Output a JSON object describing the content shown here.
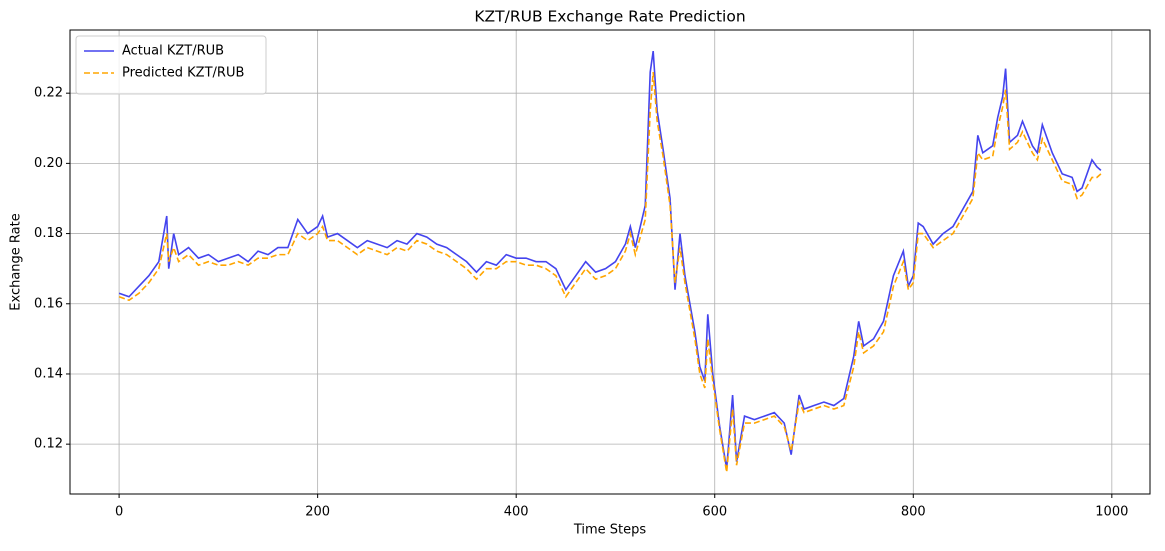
{
  "chart_data": {
    "type": "line",
    "title": "KZT/RUB Exchange Rate Prediction",
    "xlabel": "Time Steps",
    "ylabel": "Exchange Rate",
    "x": [
      0,
      10,
      20,
      30,
      40,
      48,
      50,
      55,
      60,
      70,
      80,
      90,
      100,
      110,
      120,
      130,
      140,
      150,
      160,
      170,
      180,
      190,
      200,
      205,
      210,
      220,
      230,
      240,
      250,
      260,
      270,
      280,
      290,
      300,
      310,
      320,
      330,
      340,
      350,
      360,
      370,
      380,
      390,
      400,
      410,
      420,
      430,
      440,
      450,
      460,
      470,
      480,
      490,
      500,
      510,
      515,
      520,
      530,
      535,
      538,
      542,
      548,
      555,
      560,
      565,
      570,
      580,
      585,
      590,
      593,
      598,
      605,
      612,
      618,
      622,
      630,
      640,
      650,
      660,
      670,
      677,
      685,
      690,
      700,
      710,
      720,
      730,
      740,
      745,
      750,
      760,
      770,
      780,
      790,
      795,
      800,
      805,
      810,
      820,
      830,
      840,
      850,
      860,
      865,
      870,
      880,
      885,
      890,
      893,
      897,
      905,
      910,
      920,
      925,
      930,
      940,
      950,
      960,
      965,
      970,
      980,
      985,
      989
    ],
    "series": [
      {
        "name": "Actual KZT/RUB",
        "color": "#4444ee",
        "dash": false,
        "values": [
          0.163,
          0.162,
          0.165,
          0.168,
          0.172,
          0.185,
          0.17,
          0.18,
          0.174,
          0.176,
          0.173,
          0.174,
          0.172,
          0.173,
          0.174,
          0.172,
          0.175,
          0.174,
          0.176,
          0.176,
          0.184,
          0.18,
          0.182,
          0.185,
          0.179,
          0.18,
          0.178,
          0.176,
          0.178,
          0.177,
          0.176,
          0.178,
          0.177,
          0.18,
          0.179,
          0.177,
          0.176,
          0.174,
          0.172,
          0.169,
          0.172,
          0.171,
          0.174,
          0.173,
          0.173,
          0.172,
          0.172,
          0.17,
          0.164,
          0.168,
          0.172,
          0.169,
          0.17,
          0.172,
          0.177,
          0.182,
          0.176,
          0.188,
          0.226,
          0.232,
          0.215,
          0.204,
          0.19,
          0.164,
          0.18,
          0.168,
          0.152,
          0.142,
          0.138,
          0.157,
          0.14,
          0.125,
          0.113,
          0.134,
          0.115,
          0.128,
          0.127,
          0.128,
          0.129,
          0.126,
          0.117,
          0.134,
          0.13,
          0.131,
          0.132,
          0.131,
          0.133,
          0.145,
          0.155,
          0.148,
          0.15,
          0.155,
          0.168,
          0.175,
          0.165,
          0.168,
          0.183,
          0.182,
          0.177,
          0.18,
          0.182,
          0.187,
          0.192,
          0.208,
          0.203,
          0.205,
          0.213,
          0.219,
          0.227,
          0.206,
          0.208,
          0.212,
          0.205,
          0.203,
          0.211,
          0.203,
          0.197,
          0.196,
          0.192,
          0.193,
          0.201,
          0.199,
          0.198
        ]
      },
      {
        "name": "Predicted KZT/RUB",
        "color": "#ffa500",
        "dash": true,
        "values": [
          0.162,
          0.161,
          0.163,
          0.166,
          0.17,
          0.18,
          0.172,
          0.176,
          0.172,
          0.174,
          0.171,
          0.172,
          0.171,
          0.171,
          0.172,
          0.171,
          0.173,
          0.173,
          0.174,
          0.174,
          0.18,
          0.178,
          0.18,
          0.182,
          0.178,
          0.178,
          0.176,
          0.174,
          0.176,
          0.175,
          0.174,
          0.176,
          0.175,
          0.178,
          0.177,
          0.175,
          0.174,
          0.172,
          0.17,
          0.167,
          0.17,
          0.17,
          0.172,
          0.172,
          0.171,
          0.171,
          0.17,
          0.168,
          0.162,
          0.166,
          0.17,
          0.167,
          0.168,
          0.17,
          0.175,
          0.18,
          0.174,
          0.184,
          0.215,
          0.226,
          0.212,
          0.202,
          0.188,
          0.166,
          0.176,
          0.166,
          0.15,
          0.14,
          0.136,
          0.15,
          0.138,
          0.124,
          0.112,
          0.13,
          0.114,
          0.126,
          0.126,
          0.127,
          0.128,
          0.125,
          0.118,
          0.132,
          0.129,
          0.13,
          0.131,
          0.13,
          0.131,
          0.142,
          0.152,
          0.146,
          0.148,
          0.152,
          0.165,
          0.172,
          0.164,
          0.166,
          0.18,
          0.18,
          0.176,
          0.178,
          0.18,
          0.185,
          0.19,
          0.203,
          0.201,
          0.202,
          0.21,
          0.216,
          0.221,
          0.204,
          0.206,
          0.209,
          0.203,
          0.201,
          0.207,
          0.201,
          0.195,
          0.194,
          0.19,
          0.191,
          0.196,
          0.196,
          0.197
        ]
      }
    ],
    "xlim": [
      -49.45,
      1038.45
    ],
    "ylim": [
      0.1058,
      0.238
    ],
    "xticks": [
      0,
      200,
      400,
      600,
      800,
      1000
    ],
    "yticks": [
      0.12,
      0.14,
      0.16,
      0.18,
      {
        "value": 0.2,
        "label": "0.20"
      },
      0.22
    ],
    "grid": true,
    "legend": "upper-left"
  }
}
